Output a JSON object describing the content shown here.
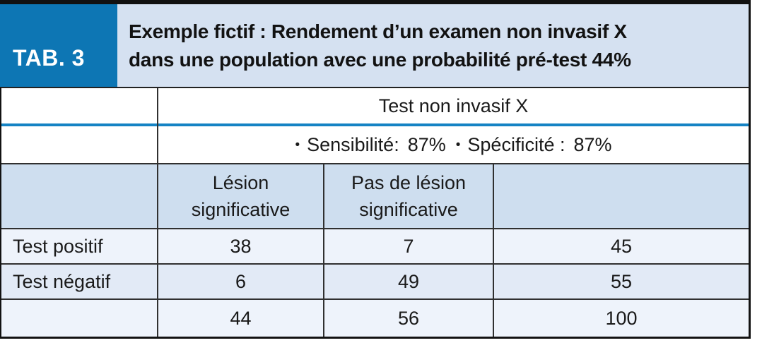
{
  "figure": {
    "tag_label": "TAB. 3",
    "title": {
      "line1": "Exemple fictif : Rendement d’un examen non invasif X",
      "line2": "dans une population avec une probabilité pré-test 44%"
    },
    "table": {
      "test_name_header": "Test non invasif X",
      "metrics": {
        "bullet": "•",
        "sensitivity_label": "Sensibilité:",
        "sensitivity_value": "87%",
        "specificity_label": "Spécificité :",
        "specificity_value": "87%"
      },
      "column_headers": {
        "row_label": "",
        "lesion": "Lésion\nsignificative",
        "no_lesion": "Pas de lésion\nsignificative",
        "total": ""
      },
      "rows": [
        {
          "label": "Test positif",
          "lesion": "38",
          "no_lesion": "7",
          "total": "45"
        },
        {
          "label": "Test négatif",
          "lesion": "6",
          "no_lesion": "49",
          "total": "55"
        },
        {
          "label": "",
          "lesion": "44",
          "no_lesion": "56",
          "total": "100"
        }
      ]
    },
    "colors": {
      "tag_bg": "#0d76b4",
      "title_bg": "#d5e1f1",
      "divider_blue": "#1583c4",
      "header_row_bg": "#cedeef",
      "row_light_bg": "#eef3fb",
      "row_mid_bg": "#e2eaf6"
    }
  },
  "chart_data": {
    "type": "table",
    "title": "Exemple fictif : Rendement d’un examen non invasif X dans une population avec une probabilité pré-test 44%",
    "test_name": "Test non invasif X",
    "sensitivity": "87%",
    "specificity": "87%",
    "columns": [
      "",
      "Lésion significative",
      "Pas de lésion significative",
      ""
    ],
    "rows": [
      [
        "Test positif",
        38,
        7,
        45
      ],
      [
        "Test négatif",
        6,
        49,
        55
      ],
      [
        "",
        44,
        56,
        100
      ]
    ]
  }
}
